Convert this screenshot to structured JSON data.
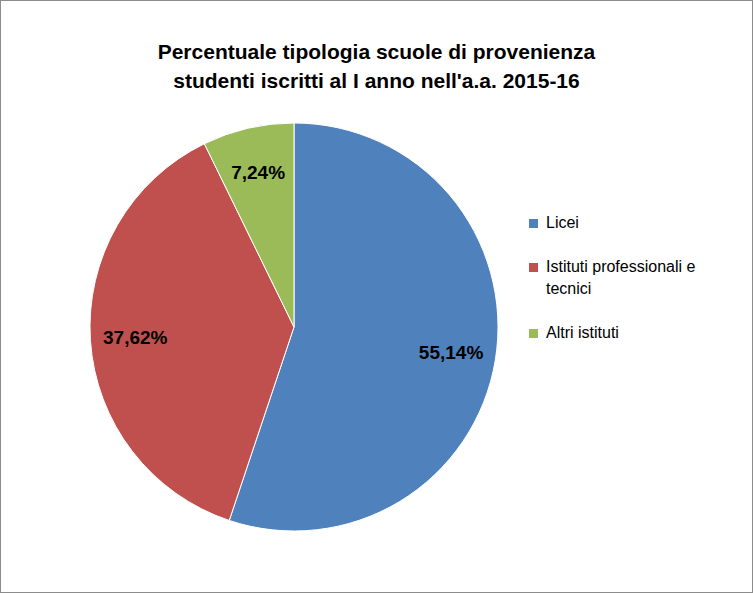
{
  "chart_data": {
    "type": "pie",
    "title": "Percentuale tipologia scuole di provenienza\nstudenti iscritti al I anno nell'a.a. 2015-16",
    "categories": [
      "Licei",
      "Istituti professionali e tecnici",
      "Altri istituti"
    ],
    "values": [
      55.14,
      37.62,
      7.24
    ],
    "value_labels": [
      "55,14%",
      "37,62%",
      "7,24%"
    ],
    "colors": [
      "#4f81bd",
      "#c0504d",
      "#9bbb59"
    ],
    "data_labels": true,
    "legend": "right"
  }
}
